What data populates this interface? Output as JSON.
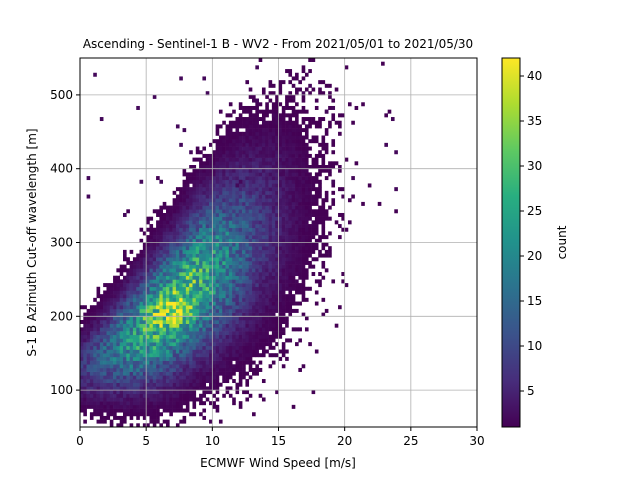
{
  "chart_data": {
    "type": "heatmap",
    "title": "Ascending - Sentinel-1 B - WV2 - From 2021/05/01 to 2021/05/30",
    "xlabel": "ECMWF Wind Speed [m/s]",
    "ylabel": "S-1 B Azimuth Cut-off wavelength [m]",
    "xlim": [
      0,
      30
    ],
    "ylim": [
      50,
      550
    ],
    "x_ticks": [
      0,
      5,
      10,
      15,
      20,
      25,
      30
    ],
    "y_ticks": [
      100,
      200,
      300,
      400,
      500
    ],
    "grid": true,
    "colorbar": {
      "label": "count",
      "range": [
        1,
        42
      ],
      "ticks": [
        5,
        10,
        15,
        20,
        25,
        30,
        35,
        40
      ],
      "colormap": "viridis"
    },
    "density_ridge": [
      {
        "x": 1,
        "y": 140
      },
      {
        "x": 2,
        "y": 150
      },
      {
        "x": 3,
        "y": 160
      },
      {
        "x": 4,
        "y": 172
      },
      {
        "x": 5,
        "y": 185
      },
      {
        "x": 6,
        "y": 198
      },
      {
        "x": 7,
        "y": 212
      },
      {
        "x": 8,
        "y": 230
      },
      {
        "x": 9,
        "y": 248
      },
      {
        "x": 10,
        "y": 262
      },
      {
        "x": 11,
        "y": 278
      },
      {
        "x": 12,
        "y": 292
      },
      {
        "x": 13,
        "y": 305
      },
      {
        "x": 14,
        "y": 318
      },
      {
        "x": 15,
        "y": 332
      },
      {
        "x": 16,
        "y": 345
      },
      {
        "x": 17,
        "y": 358
      },
      {
        "x": 18,
        "y": 370
      }
    ],
    "peak": {
      "x": 7,
      "y": 205,
      "count": 42
    }
  }
}
